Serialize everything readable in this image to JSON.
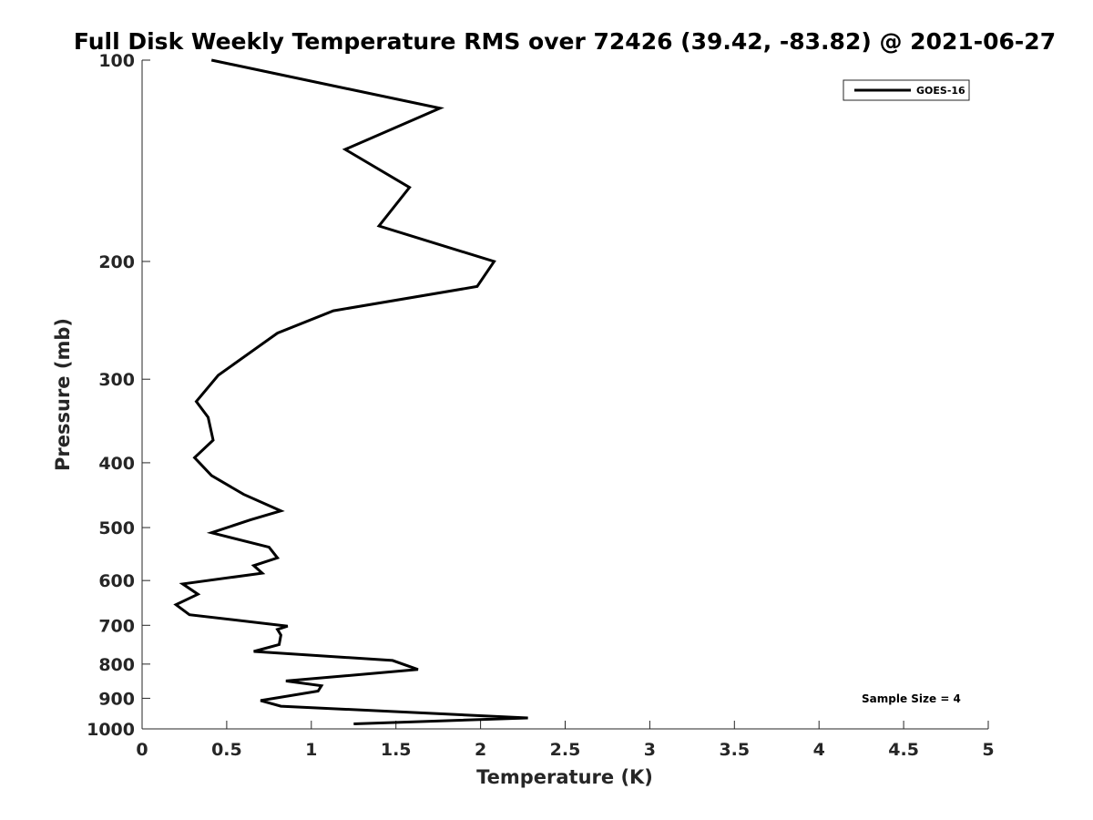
{
  "chart_data": {
    "type": "line",
    "title": "Full Disk Weekly Temperature RMS over 72426 (39.42, -83.82) @ 2021-06-27",
    "xlabel": "Temperature (K)",
    "ylabel": "Pressure (mb)",
    "xlim": [
      0,
      5
    ],
    "ylim": [
      100,
      1000
    ],
    "yscale": "log",
    "y_reversed": true,
    "xticks": [
      0,
      0.5,
      1,
      1.5,
      2,
      2.5,
      3,
      3.5,
      4,
      4.5,
      5
    ],
    "xtick_labels": [
      "0",
      "0.5",
      "1",
      "1.5",
      "2",
      "2.5",
      "3",
      "3.5",
      "4",
      "4.5",
      "5"
    ],
    "yticks": [
      100,
      200,
      300,
      400,
      500,
      600,
      700,
      800,
      900,
      1000
    ],
    "ytick_labels": [
      "100",
      "200",
      "300",
      "400",
      "500",
      "600",
      "700",
      "800",
      "900",
      "1000"
    ],
    "grid": false,
    "legend": "top-right",
    "annotation": "Sample Size = 4",
    "series": [
      {
        "name": "GOES-16",
        "color": "#000000",
        "points": [
          [
            0.41,
            100
          ],
          [
            1.76,
            118
          ],
          [
            1.2,
            136
          ],
          [
            1.58,
            155
          ],
          [
            1.4,
            177
          ],
          [
            2.08,
            200
          ],
          [
            1.98,
            218
          ],
          [
            1.13,
            237
          ],
          [
            0.8,
            256
          ],
          [
            0.45,
            296
          ],
          [
            0.32,
            324
          ],
          [
            0.39,
            342
          ],
          [
            0.42,
            370
          ],
          [
            0.31,
            393
          ],
          [
            0.41,
            418
          ],
          [
            0.6,
            446
          ],
          [
            0.82,
            472
          ],
          [
            0.64,
            487
          ],
          [
            0.41,
            509
          ],
          [
            0.75,
            535
          ],
          [
            0.8,
            555
          ],
          [
            0.66,
            570
          ],
          [
            0.71,
            585
          ],
          [
            0.24,
            607
          ],
          [
            0.33,
            629
          ],
          [
            0.2,
            652
          ],
          [
            0.28,
            675
          ],
          [
            0.86,
            702
          ],
          [
            0.8,
            710
          ],
          [
            0.82,
            724
          ],
          [
            0.81,
            748
          ],
          [
            0.66,
            766
          ],
          [
            1.48,
            790
          ],
          [
            1.63,
            815
          ],
          [
            0.85,
            848
          ],
          [
            1.06,
            862
          ],
          [
            1.04,
            878
          ],
          [
            0.7,
            907
          ],
          [
            0.82,
            925
          ],
          [
            2.28,
            963
          ],
          [
            1.25,
            983
          ]
        ]
      }
    ]
  }
}
